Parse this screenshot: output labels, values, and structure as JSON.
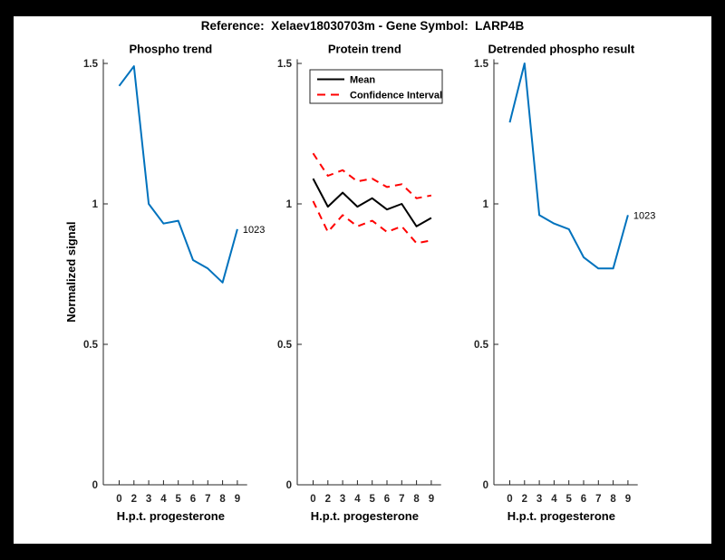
{
  "figure": {
    "title": "Reference:  Xelaev18030703m - Gene Symbol:  LARP4B",
    "background": "#ffffff",
    "frame_color": "#000000"
  },
  "colors": {
    "blue": "#0072BD",
    "red": "#FF0000",
    "black": "#000000",
    "axis": "#262626"
  },
  "chart_data": [
    {
      "type": "line",
      "title": "Phospho trend",
      "xlabel": "H.p.t. progesterone",
      "ylabel": "Normalized signal",
      "categories": [
        "0",
        "2",
        "3",
        "4",
        "5",
        "6",
        "7",
        "8",
        "9"
      ],
      "yticks": [
        {
          "v": 0,
          "label": "0"
        },
        {
          "v": 0.5,
          "label": "0.5"
        },
        {
          "v": 1,
          "label": "1"
        },
        {
          "v": 1.5,
          "label": "1.5"
        }
      ],
      "ylim": [
        0,
        1.515
      ],
      "grid": false,
      "series": [
        {
          "name": "phospho-trend",
          "color_key": "blue",
          "dash": false,
          "values": [
            1.42,
            1.49,
            1.0,
            0.93,
            0.94,
            0.8,
            0.77,
            0.72,
            0.91
          ]
        }
      ],
      "end_label": "1023",
      "legend": null
    },
    {
      "type": "line",
      "title": "Protein trend",
      "xlabel": "H.p.t. progesterone",
      "ylabel": null,
      "categories": [
        "0",
        "2",
        "3",
        "4",
        "5",
        "6",
        "7",
        "8",
        "9"
      ],
      "yticks": [
        {
          "v": 0,
          "label": "0"
        },
        {
          "v": 0.5,
          "label": "0.5"
        },
        {
          "v": 1,
          "label": "1"
        },
        {
          "v": 1.5,
          "label": "1.5"
        }
      ],
      "ylim": [
        0,
        1.515
      ],
      "grid": false,
      "series": [
        {
          "name": "mean",
          "color_key": "black",
          "dash": false,
          "values": [
            1.09,
            0.99,
            1.04,
            0.99,
            1.02,
            0.98,
            1.0,
            0.92,
            0.95
          ]
        },
        {
          "name": "ci-upper",
          "color_key": "red",
          "dash": true,
          "values": [
            1.18,
            1.1,
            1.12,
            1.08,
            1.09,
            1.06,
            1.07,
            1.02,
            1.03
          ]
        },
        {
          "name": "ci-lower",
          "color_key": "red",
          "dash": true,
          "values": [
            1.01,
            0.9,
            0.96,
            0.92,
            0.94,
            0.9,
            0.92,
            0.86,
            0.87
          ]
        }
      ],
      "end_label": null,
      "legend": {
        "position": "north",
        "items": [
          {
            "label": "Mean",
            "color_key": "black",
            "dash": false
          },
          {
            "label": "Confidence Interval",
            "color_key": "red",
            "dash": true
          }
        ]
      }
    },
    {
      "type": "line",
      "title": "Detrended phospho result",
      "xlabel": "H.p.t. progesterone",
      "ylabel": null,
      "categories": [
        "0",
        "2",
        "3",
        "4",
        "5",
        "6",
        "7",
        "8",
        "9"
      ],
      "yticks": [
        {
          "v": 0,
          "label": "0"
        },
        {
          "v": 0.5,
          "label": "0.5"
        },
        {
          "v": 1,
          "label": "1"
        },
        {
          "v": 1.5,
          "label": "1.5"
        }
      ],
      "ylim": [
        0,
        1.515
      ],
      "grid": false,
      "series": [
        {
          "name": "detrended-phospho",
          "color_key": "blue",
          "dash": false,
          "values": [
            1.29,
            1.5,
            0.96,
            0.93,
            0.91,
            0.81,
            0.77,
            0.77,
            0.96
          ]
        }
      ],
      "end_label": "1023",
      "legend": null
    }
  ]
}
